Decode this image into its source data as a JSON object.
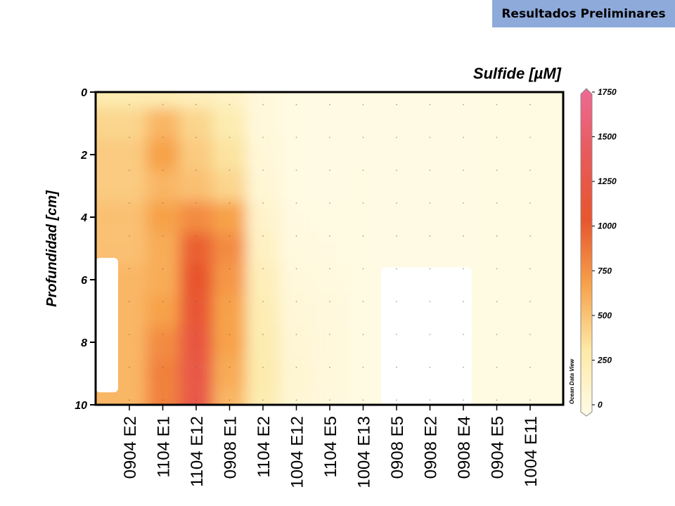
{
  "badge": {
    "label": "Resultados Preliminares"
  },
  "chart_data": {
    "type": "heatmap",
    "title": "Sulfide [µM]",
    "ylabel": "Profundidad [cm]",
    "xlabel": "",
    "watermark": "Ocean Data View",
    "y_ticks": [
      "0",
      "2",
      "4",
      "6",
      "8",
      "10"
    ],
    "ylim": [
      0,
      10
    ],
    "y_inverted": true,
    "x_categories": [
      "0904 E2",
      "1104 E1",
      "1104 E12",
      "0908 E1",
      "1104 E2",
      "1004 E12",
      "1104 E5",
      "1004 E13",
      "0908 E5",
      "0908 E2",
      "0908 E4",
      "0904 E5",
      "1004 E11"
    ],
    "colorbar": {
      "min": 0,
      "max": 1750,
      "ticks": [
        "1750",
        "1500",
        "1250",
        "1000",
        "750",
        "500",
        "250",
        "0"
      ],
      "colors": [
        "#fffbe6",
        "#fde9a8",
        "#f7a24a",
        "#e8552e",
        "#e85a5a",
        "#ee6a95"
      ]
    },
    "depths": [
      0,
      1,
      2,
      3,
      4,
      5,
      6,
      7,
      8,
      9,
      10
    ],
    "values_by_depth": [
      [
        300,
        280,
        240,
        180,
        60,
        20,
        10,
        10,
        10,
        10,
        10,
        20,
        20
      ],
      [
        450,
        600,
        450,
        300,
        60,
        20,
        10,
        10,
        10,
        10,
        10,
        20,
        20
      ],
      [
        500,
        700,
        500,
        380,
        80,
        20,
        10,
        15,
        10,
        10,
        10,
        20,
        20
      ],
      [
        500,
        600,
        550,
        450,
        100,
        20,
        10,
        20,
        10,
        10,
        10,
        20,
        20
      ],
      [
        550,
        700,
        800,
        700,
        150,
        30,
        20,
        20,
        10,
        10,
        10,
        20,
        20
      ],
      [
        550,
        650,
        1000,
        800,
        200,
        40,
        30,
        20,
        10,
        10,
        10,
        20,
        20
      ],
      [
        600,
        650,
        1050,
        750,
        250,
        60,
        40,
        20,
        10,
        10,
        20,
        20,
        20
      ],
      [
        600,
        700,
        1100,
        700,
        280,
        80,
        50,
        20,
        15,
        15,
        20,
        20,
        20
      ],
      [
        600,
        800,
        1200,
        700,
        300,
        100,
        60,
        25,
        15,
        15,
        20,
        20,
        20
      ],
      [
        600,
        850,
        1250,
        650,
        320,
        110,
        60,
        25,
        15,
        15,
        20,
        20,
        20
      ],
      [
        600,
        850,
        1250,
        600,
        300,
        100,
        50,
        25,
        15,
        15,
        20,
        20,
        20
      ]
    ],
    "no_data_regions": [
      {
        "x_from": "0904 E2",
        "depth_from": 5.3,
        "depth_to": 9.6
      },
      {
        "x_from": "0908 E5",
        "x_to": "0908 E4",
        "depth_from": 5.6,
        "depth_to": 10
      }
    ],
    "grid": false
  }
}
